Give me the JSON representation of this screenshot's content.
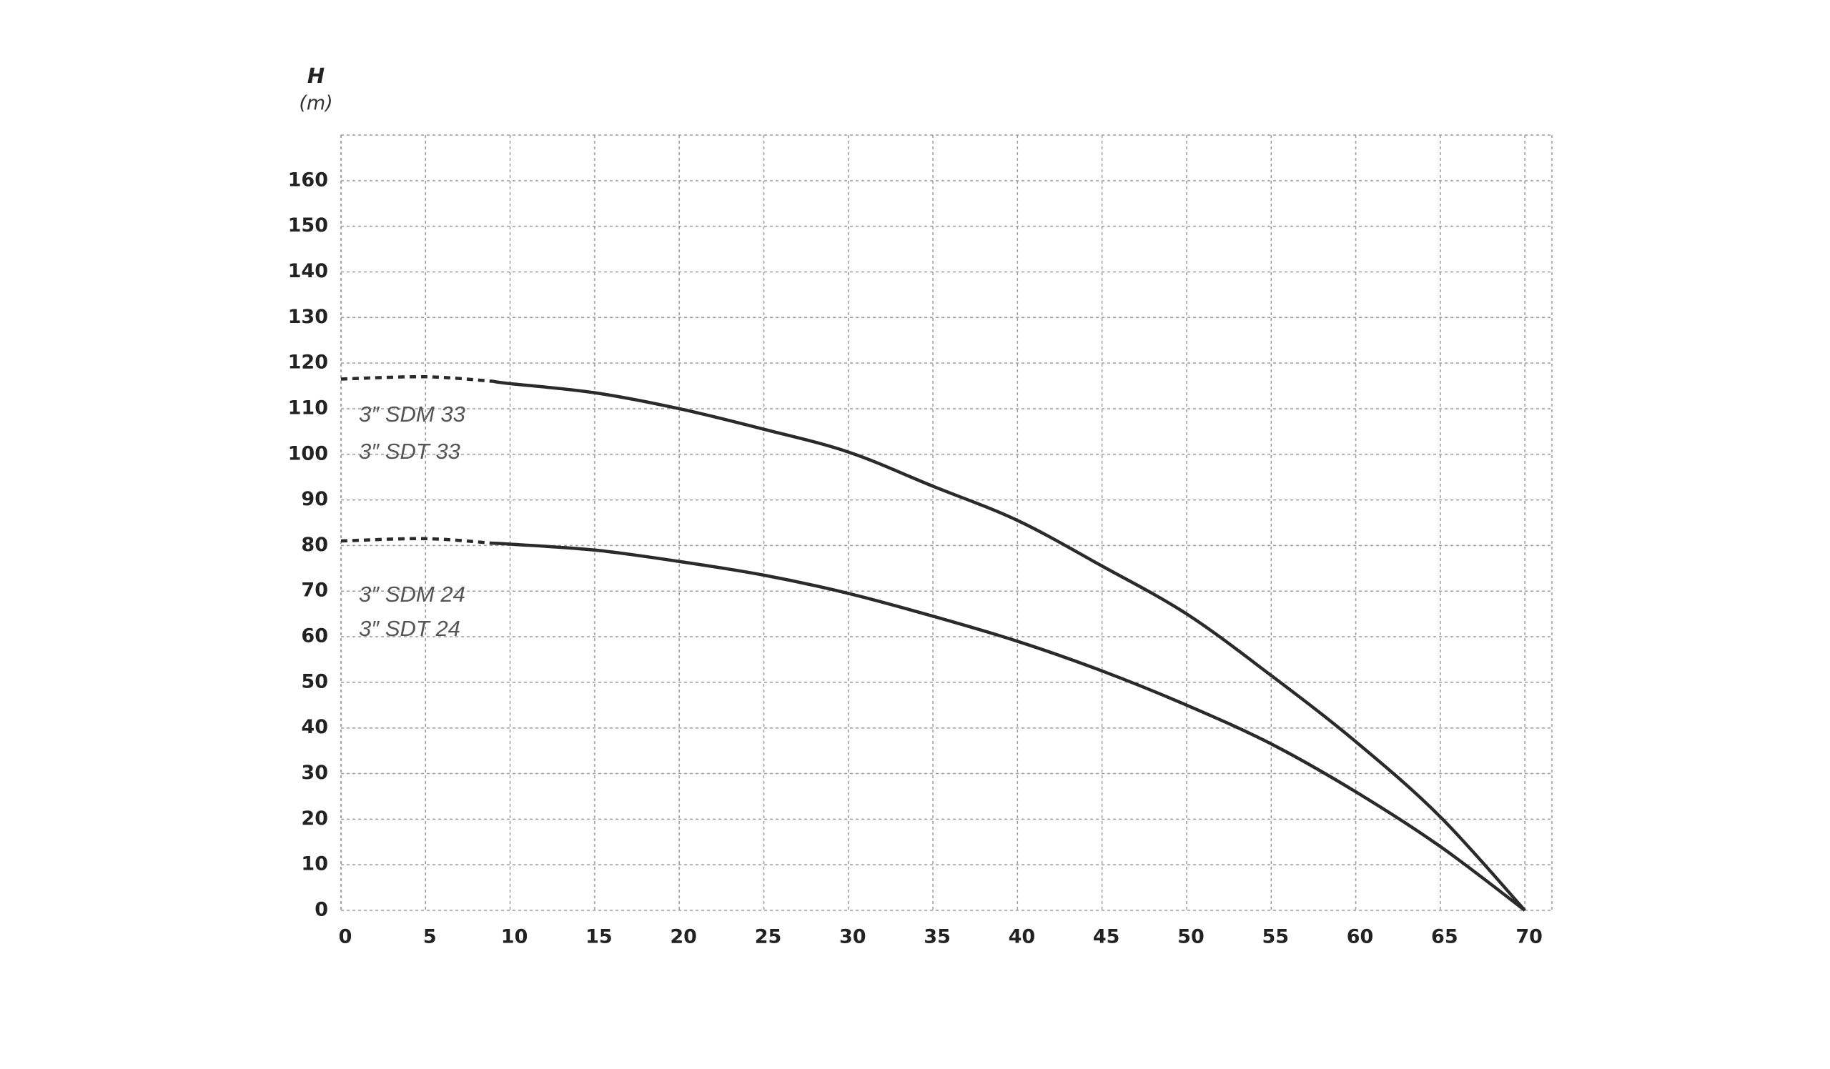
{
  "chart_data": {
    "type": "line",
    "y_label": "H",
    "y_unit": "(m)",
    "x": [
      0,
      5,
      9,
      10,
      15,
      20,
      25,
      30,
      35,
      40,
      45,
      50,
      55,
      60,
      65,
      70
    ],
    "series": [
      {
        "color": "#2a2a2a",
        "values": [
          116.5,
          117,
          116,
          115.5,
          113.5,
          110,
          105.5,
          100.5,
          93,
          85.5,
          75.5,
          65,
          51.5,
          37,
          20.5,
          0
        ]
      },
      {
        "color": "#2a2a2a",
        "values": [
          81,
          81.5,
          80.5,
          80.3,
          79,
          76.5,
          73.5,
          69.5,
          64.5,
          59,
          52.5,
          45,
          36.5,
          26,
          14,
          0
        ]
      }
    ],
    "dashed_up_to_x": 9,
    "annotations": [
      "3″ SDM 33",
      "3″ SDT 33",
      "3″ SDM 24",
      "3″ SDT 24"
    ],
    "xlim": [
      0,
      71.6
    ],
    "ylim": [
      0,
      170
    ],
    "xticks": [
      0,
      5,
      10,
      15,
      20,
      25,
      30,
      35,
      40,
      45,
      50,
      55,
      60,
      65,
      70
    ],
    "yticks": [
      0,
      10,
      20,
      30,
      40,
      50,
      60,
      70,
      80,
      90,
      100,
      110,
      120,
      130,
      140,
      150,
      160
    ],
    "grid": true
  }
}
